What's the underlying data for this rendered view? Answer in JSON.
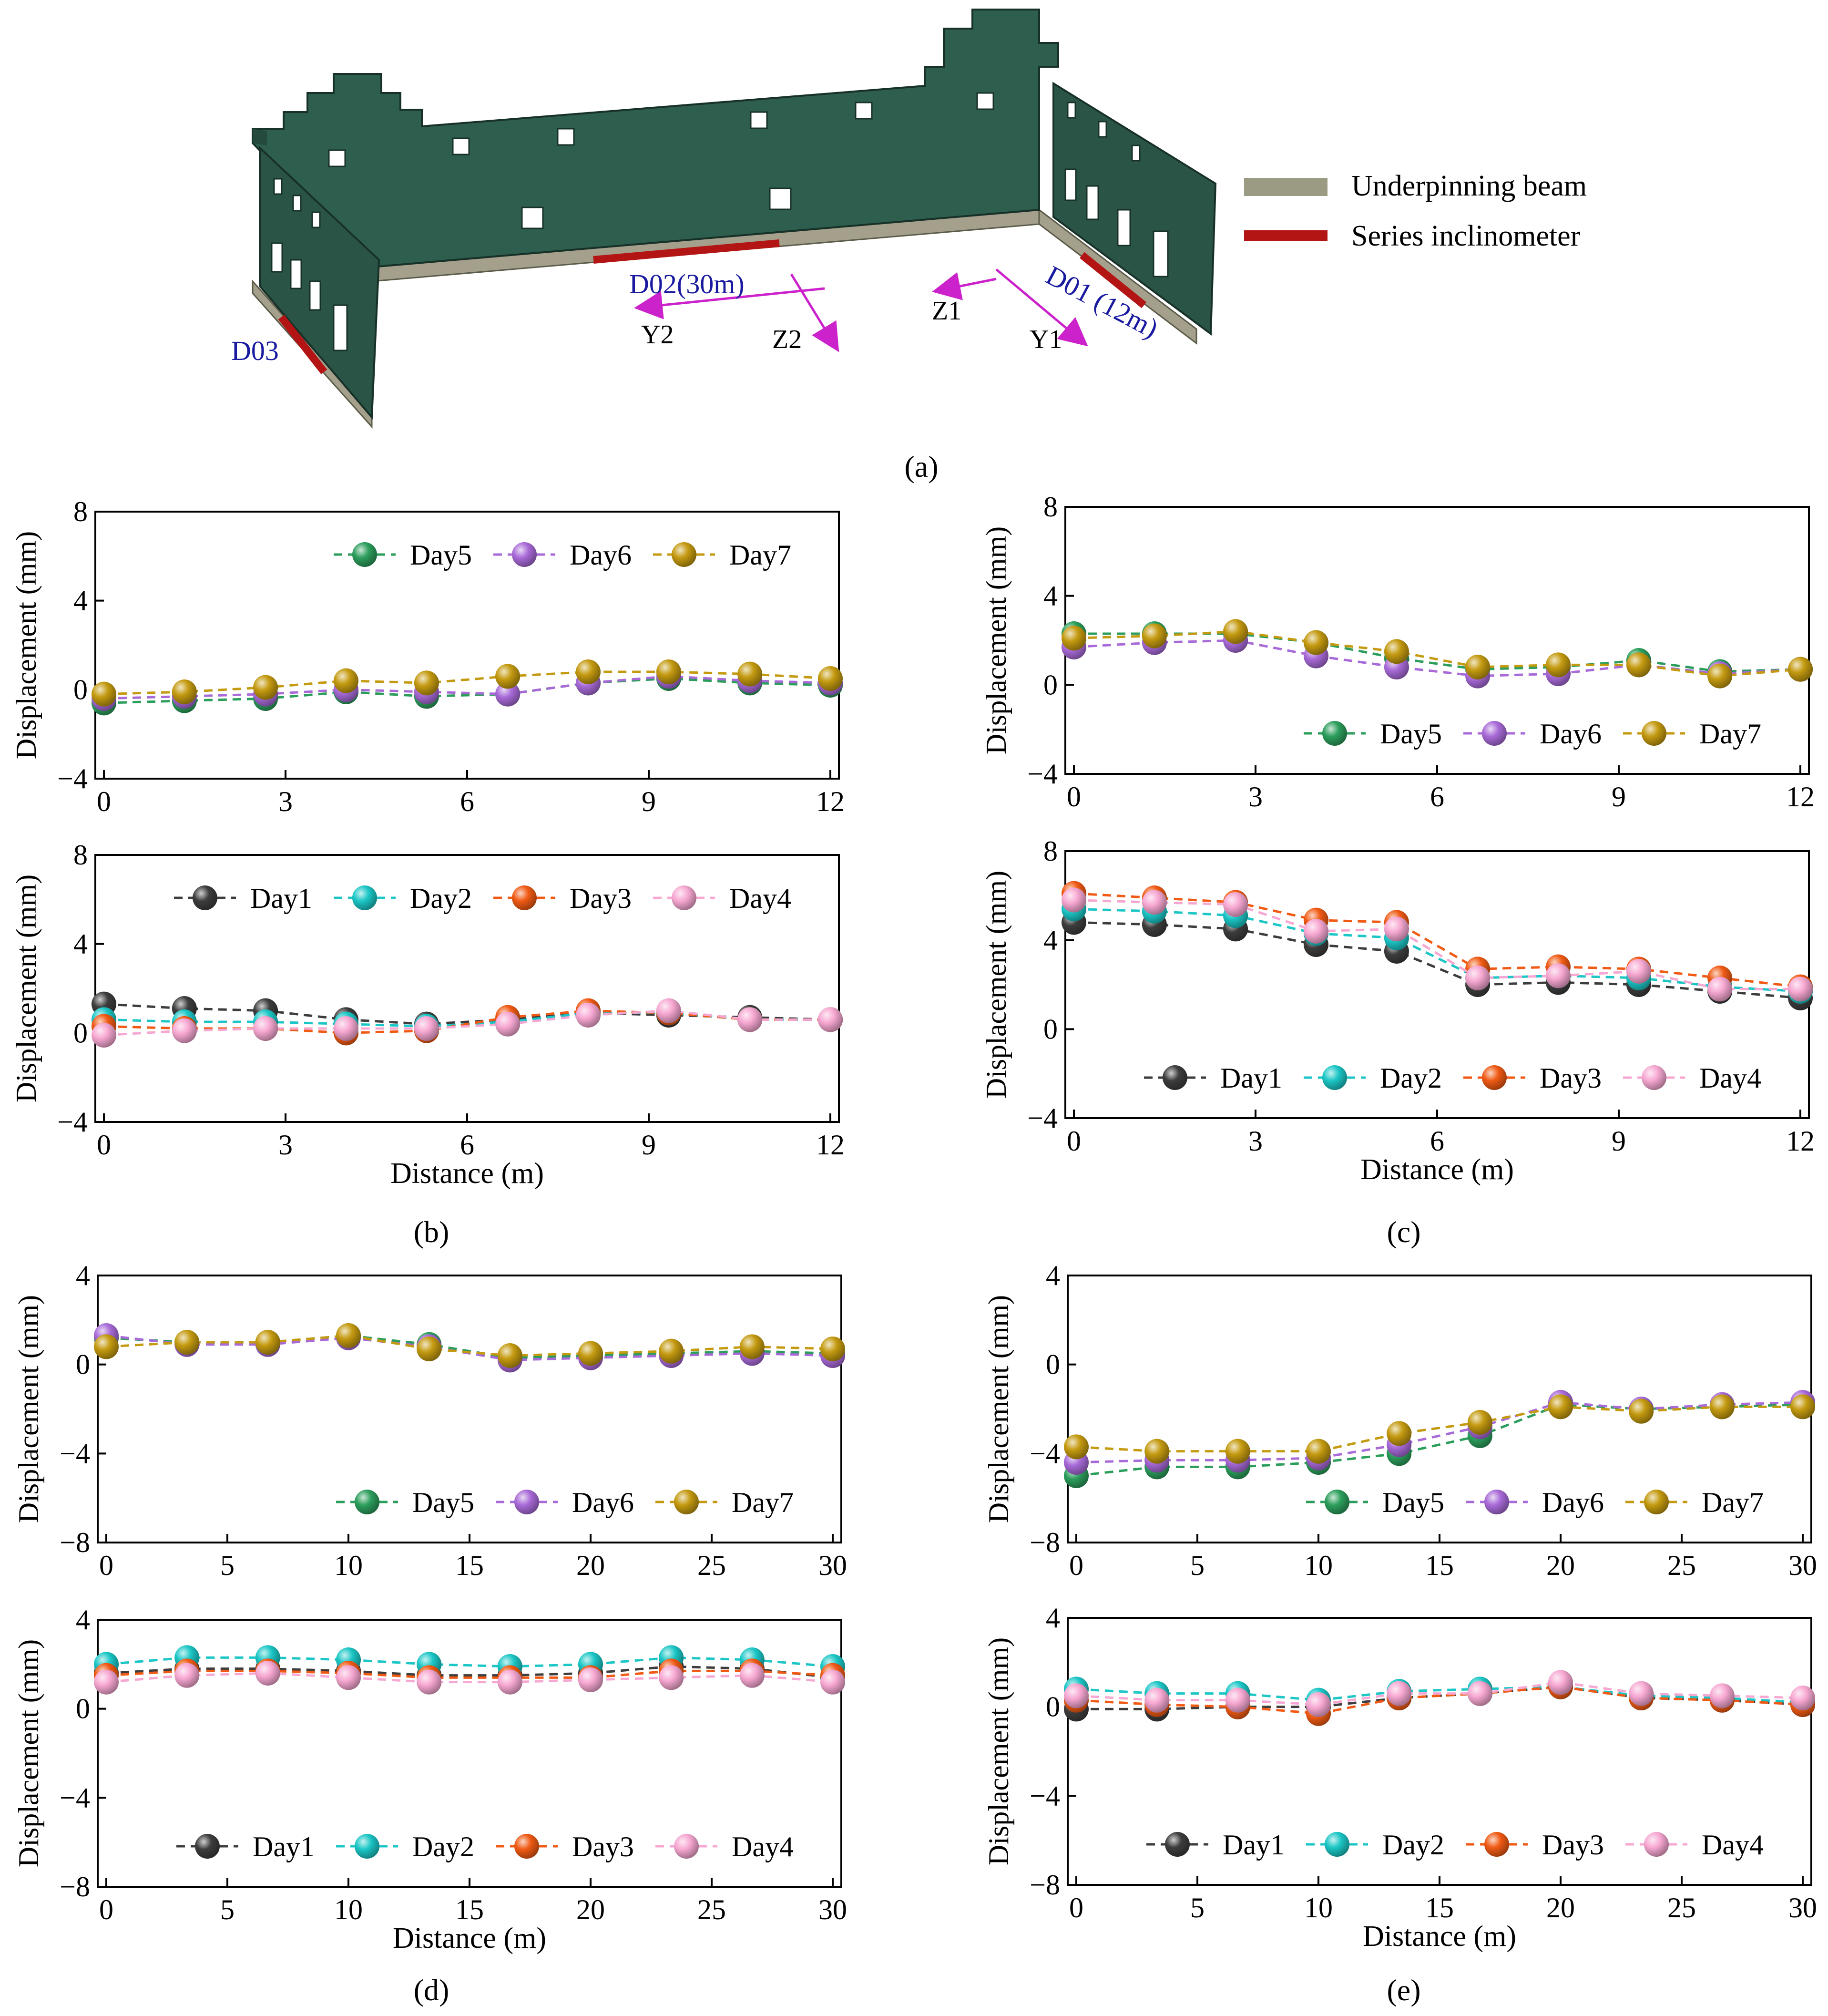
{
  "model": {
    "legend": {
      "beam": {
        "label": "Underpinning beam",
        "color": "#9b9b83"
      },
      "inclinometer": {
        "label": "Series inclinometer",
        "color": "#b31414"
      }
    },
    "labels": {
      "d01": "D01 (12m)",
      "d02": "D02(30m)",
      "d03": "D03",
      "y1": "Y1",
      "z1": "Z1",
      "y2": "Y2",
      "z2": "Z2"
    },
    "colors": {
      "wall": "#2e5e4e",
      "arrow": "#cc22cc",
      "label_blue": "#1a1aa0"
    }
  },
  "captions": {
    "a": "(a)",
    "b": "(b)",
    "c": "(c)",
    "d": "(d)",
    "e": "(e)"
  },
  "series_styles": {
    "Day1": "#3d3d3d",
    "Day2": "#1cc6c6",
    "Day3": "#f05a14",
    "Day4": "#f7a8d2",
    "Day5": "#2c9e5c",
    "Day6": "#a86ad8",
    "Day7": "#c49a10"
  },
  "chart_data": [
    {
      "id": "b_top",
      "type": "line",
      "xlabel": "",
      "ylabel": "Displacement (mm)",
      "xlim": [
        0,
        12
      ],
      "ylim": [
        -4,
        8
      ],
      "xticks": [
        "0",
        "3",
        "6",
        "9",
        "12"
      ],
      "yticks": [
        "−4",
        "0",
        "4",
        "8"
      ],
      "legend_pos": "top-right",
      "x": [
        0,
        1.33,
        2.67,
        4,
        5.33,
        6.67,
        8,
        9.33,
        10.67,
        12
      ],
      "series": [
        {
          "name": "Day5",
          "values": [
            -0.6,
            -0.5,
            -0.4,
            -0.1,
            -0.3,
            -0.2,
            0.3,
            0.5,
            0.3,
            0.2
          ]
        },
        {
          "name": "Day6",
          "values": [
            -0.4,
            -0.3,
            -0.2,
            0.0,
            -0.1,
            -0.2,
            0.3,
            0.6,
            0.4,
            0.3
          ]
        },
        {
          "name": "Day7",
          "values": [
            -0.2,
            -0.1,
            0.1,
            0.4,
            0.3,
            0.6,
            0.8,
            0.8,
            0.7,
            0.5
          ]
        }
      ]
    },
    {
      "id": "b_bot",
      "type": "line",
      "xlabel": "Distance (m)",
      "ylabel": "Displacement (mm)",
      "xlim": [
        0,
        12
      ],
      "ylim": [
        -4,
        8
      ],
      "xticks": [
        "0",
        "3",
        "6",
        "9",
        "12"
      ],
      "yticks": [
        "−4",
        "0",
        "4",
        "8"
      ],
      "legend_pos": "top-right",
      "x": [
        0,
        1.33,
        2.67,
        4,
        5.33,
        6.67,
        8,
        9.33,
        10.67,
        12
      ],
      "series": [
        {
          "name": "Day1",
          "values": [
            1.3,
            1.1,
            1.0,
            0.6,
            0.4,
            0.6,
            0.9,
            0.8,
            0.7,
            0.6
          ]
        },
        {
          "name": "Day2",
          "values": [
            0.6,
            0.5,
            0.5,
            0.4,
            0.3,
            0.5,
            0.9,
            0.9,
            0.6,
            0.6
          ]
        },
        {
          "name": "Day3",
          "values": [
            0.3,
            0.2,
            0.2,
            0.0,
            0.1,
            0.7,
            1.0,
            0.9,
            0.6,
            0.6
          ]
        },
        {
          "name": "Day4",
          "values": [
            -0.1,
            0.1,
            0.2,
            0.2,
            0.2,
            0.4,
            0.8,
            1.0,
            0.6,
            0.6
          ]
        }
      ]
    },
    {
      "id": "c_top",
      "type": "line",
      "xlabel": "",
      "ylabel": "Displacement (mm)",
      "xlim": [
        0,
        12
      ],
      "ylim": [
        -4,
        8
      ],
      "xticks": [
        "0",
        "3",
        "6",
        "9",
        "12"
      ],
      "yticks": [
        "−4",
        "0",
        "4",
        "8"
      ],
      "legend_pos": "bottom-right",
      "x": [
        0,
        1.33,
        2.67,
        4,
        5.33,
        6.67,
        8,
        9.33,
        10.67,
        12
      ],
      "series": [
        {
          "name": "Day5",
          "values": [
            2.3,
            2.3,
            2.3,
            1.9,
            1.2,
            0.7,
            0.8,
            1.1,
            0.6,
            0.7
          ]
        },
        {
          "name": "Day6",
          "values": [
            1.7,
            1.9,
            2.0,
            1.3,
            0.8,
            0.4,
            0.5,
            0.9,
            0.5,
            0.7
          ]
        },
        {
          "name": "Day7",
          "values": [
            2.1,
            2.2,
            2.4,
            1.9,
            1.5,
            0.8,
            0.9,
            0.9,
            0.4,
            0.7
          ]
        }
      ]
    },
    {
      "id": "c_bot",
      "type": "line",
      "xlabel": "Distance (m)",
      "ylabel": "Displacement (mm)",
      "xlim": [
        0,
        12
      ],
      "ylim": [
        -4,
        8
      ],
      "xticks": [
        "0",
        "3",
        "6",
        "9",
        "12"
      ],
      "yticks": [
        "−4",
        "0",
        "4",
        "8"
      ],
      "legend_pos": "bottom-right",
      "x": [
        0,
        1.33,
        2.67,
        4,
        5.33,
        6.67,
        8,
        9.33,
        10.67,
        12
      ],
      "series": [
        {
          "name": "Day1",
          "values": [
            4.8,
            4.7,
            4.5,
            3.8,
            3.5,
            2.0,
            2.1,
            2.0,
            1.7,
            1.4
          ]
        },
        {
          "name": "Day2",
          "values": [
            5.4,
            5.3,
            5.1,
            4.3,
            4.1,
            2.3,
            2.4,
            2.3,
            1.9,
            1.7
          ]
        },
        {
          "name": "Day3",
          "values": [
            6.1,
            5.9,
            5.7,
            4.9,
            4.8,
            2.7,
            2.8,
            2.7,
            2.3,
            1.9
          ]
        },
        {
          "name": "Day4",
          "values": [
            5.8,
            5.7,
            5.6,
            4.4,
            4.5,
            2.3,
            2.4,
            2.6,
            1.8,
            1.8
          ]
        }
      ]
    },
    {
      "id": "d_top",
      "type": "line",
      "xlabel": "",
      "ylabel": "Displacement (mm)",
      "xlim": [
        0,
        30
      ],
      "ylim": [
        -8,
        4
      ],
      "xticks": [
        "0",
        "5",
        "10",
        "15",
        "20",
        "25",
        "30"
      ],
      "yticks": [
        "−8",
        "−4",
        "0",
        "4"
      ],
      "legend_pos": "bottom-right",
      "x": [
        0,
        3.33,
        6.67,
        10,
        13.33,
        16.67,
        20,
        23.33,
        26.67,
        30
      ],
      "series": [
        {
          "name": "Day5",
          "values": [
            1.2,
            1.0,
            1.0,
            1.3,
            0.9,
            0.3,
            0.4,
            0.5,
            0.6,
            0.5
          ]
        },
        {
          "name": "Day6",
          "values": [
            1.3,
            0.9,
            0.9,
            1.2,
            0.8,
            0.2,
            0.3,
            0.4,
            0.5,
            0.4
          ]
        },
        {
          "name": "Day7",
          "values": [
            0.8,
            1.0,
            1.0,
            1.3,
            0.7,
            0.4,
            0.5,
            0.6,
            0.8,
            0.7
          ]
        }
      ]
    },
    {
      "id": "d_bot",
      "type": "line",
      "xlabel": "Distance (m)",
      "ylabel": "Displacement (mm)",
      "xlim": [
        0,
        30
      ],
      "ylim": [
        -8,
        4
      ],
      "xticks": [
        "0",
        "5",
        "10",
        "15",
        "20",
        "25",
        "30"
      ],
      "yticks": [
        "−8",
        "−4",
        "0",
        "4"
      ],
      "legend_pos": "bottom-right",
      "x": [
        0,
        3.33,
        6.67,
        10,
        13.33,
        16.67,
        20,
        23.33,
        26.67,
        30
      ],
      "series": [
        {
          "name": "Day1",
          "values": [
            1.6,
            1.8,
            1.8,
            1.7,
            1.5,
            1.5,
            1.6,
            1.9,
            1.8,
            1.4
          ]
        },
        {
          "name": "Day2",
          "values": [
            2.0,
            2.3,
            2.3,
            2.2,
            2.0,
            1.9,
            2.0,
            2.3,
            2.2,
            1.9
          ]
        },
        {
          "name": "Day3",
          "values": [
            1.5,
            1.7,
            1.7,
            1.6,
            1.4,
            1.4,
            1.4,
            1.7,
            1.7,
            1.5
          ]
        },
        {
          "name": "Day4",
          "values": [
            1.2,
            1.5,
            1.6,
            1.4,
            1.2,
            1.2,
            1.3,
            1.4,
            1.5,
            1.2
          ]
        }
      ]
    },
    {
      "id": "e_top",
      "type": "line",
      "xlabel": "",
      "ylabel": "Displacement (mm)",
      "xlim": [
        0,
        30
      ],
      "ylim": [
        -8,
        4
      ],
      "xticks": [
        "0",
        "5",
        "10",
        "15",
        "20",
        "25",
        "30"
      ],
      "yticks": [
        "−8",
        "−4",
        "0",
        "4"
      ],
      "legend_pos": "bottom-right",
      "x": [
        0,
        3.33,
        6.67,
        10,
        13.33,
        16.67,
        20,
        23.33,
        26.67,
        30
      ],
      "series": [
        {
          "name": "Day5",
          "values": [
            -5.0,
            -4.6,
            -4.6,
            -4.4,
            -4.0,
            -3.2,
            -1.8,
            -2.0,
            -1.9,
            -1.8
          ]
        },
        {
          "name": "Day6",
          "values": [
            -4.4,
            -4.3,
            -4.3,
            -4.2,
            -3.6,
            -2.8,
            -1.7,
            -2.0,
            -1.8,
            -1.7
          ]
        },
        {
          "name": "Day7",
          "values": [
            -3.7,
            -3.9,
            -3.9,
            -3.9,
            -3.1,
            -2.6,
            -1.9,
            -2.1,
            -1.9,
            -1.9
          ]
        }
      ]
    },
    {
      "id": "e_bot",
      "type": "line",
      "xlabel": "Distance (m)",
      "ylabel": "Displacement (mm)",
      "xlim": [
        0,
        30
      ],
      "ylim": [
        -8,
        4
      ],
      "xticks": [
        "0",
        "5",
        "10",
        "15",
        "20",
        "25",
        "30"
      ],
      "yticks": [
        "−8",
        "−4",
        "0",
        "4"
      ],
      "legend_pos": "bottom-right",
      "x": [
        0,
        3.33,
        6.67,
        10,
        13.33,
        16.67,
        20,
        23.33,
        26.67,
        30
      ],
      "series": [
        {
          "name": "Day1",
          "values": [
            -0.1,
            -0.1,
            0.0,
            0.0,
            0.4,
            0.6,
            0.9,
            0.4,
            0.3,
            0.1
          ]
        },
        {
          "name": "Day2",
          "values": [
            0.8,
            0.6,
            0.6,
            0.3,
            0.7,
            0.8,
            0.9,
            0.5,
            0.4,
            0.2
          ]
        },
        {
          "name": "Day3",
          "values": [
            0.3,
            0.1,
            0.0,
            -0.3,
            0.4,
            0.6,
            0.9,
            0.4,
            0.3,
            0.1
          ]
        },
        {
          "name": "Day4",
          "values": [
            0.5,
            0.3,
            0.3,
            0.1,
            0.6,
            0.6,
            1.1,
            0.6,
            0.5,
            0.4
          ]
        }
      ]
    }
  ]
}
